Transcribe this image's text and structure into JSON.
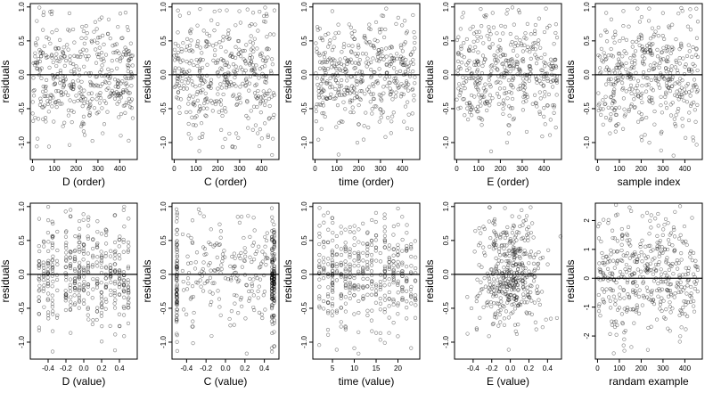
{
  "chart_data": [
    {
      "type": "scatter",
      "row": 0,
      "col": 0,
      "xlabel": "D (order)",
      "ylabel": "residuals",
      "xlim": [
        -10,
        480
      ],
      "ylim": [
        -1.25,
        1.05
      ],
      "xticks": [
        0,
        100,
        200,
        300,
        400
      ],
      "yticks": [
        -1.0,
        -0.5,
        0.0,
        0.5,
        1.0
      ],
      "ytick_labels": [
        "-1.0",
        "-0.5",
        "0.0",
        "0.5",
        "1.0"
      ],
      "ref_y": 0,
      "grid": false,
      "n_points": 420,
      "gen": {
        "kind": "order",
        "xmin": 0,
        "xmax": 460,
        "sd": 0.42,
        "seed": 11
      }
    },
    {
      "type": "scatter",
      "row": 0,
      "col": 1,
      "xlabel": "C (order)",
      "ylabel": "residuals",
      "xlim": [
        -10,
        480
      ],
      "ylim": [
        -1.25,
        1.05
      ],
      "xticks": [
        0,
        100,
        200,
        300,
        400
      ],
      "yticks": [
        -1.0,
        -0.5,
        0.0,
        0.5,
        1.0
      ],
      "ytick_labels": [
        "-1.0",
        "-0.5",
        "0.0",
        "0.5",
        "1.0"
      ],
      "ref_y": 0,
      "grid": false,
      "n_points": 420,
      "gen": {
        "kind": "order",
        "xmin": 0,
        "xmax": 460,
        "sd": 0.42,
        "seed": 23
      }
    },
    {
      "type": "scatter",
      "row": 0,
      "col": 2,
      "xlabel": "time (order)",
      "ylabel": "residuals",
      "xlim": [
        -10,
        480
      ],
      "ylim": [
        -1.25,
        1.05
      ],
      "xticks": [
        0,
        100,
        200,
        300,
        400
      ],
      "yticks": [
        -1.0,
        -0.5,
        0.0,
        0.5,
        1.0
      ],
      "ytick_labels": [
        "-1.0",
        "-0.5",
        "0.0",
        "0.5",
        "1.0"
      ],
      "ref_y": 0,
      "grid": false,
      "n_points": 420,
      "gen": {
        "kind": "order",
        "xmin": 0,
        "xmax": 460,
        "sd": 0.42,
        "seed": 37
      }
    },
    {
      "type": "scatter",
      "row": 0,
      "col": 3,
      "xlabel": "E (order)",
      "ylabel": "residuals",
      "xlim": [
        -10,
        480
      ],
      "ylim": [
        -1.25,
        1.05
      ],
      "xticks": [
        0,
        100,
        200,
        300,
        400
      ],
      "yticks": [
        -1.0,
        -0.5,
        0.0,
        0.5,
        1.0
      ],
      "ytick_labels": [
        "-1.0",
        "-0.5",
        "0.0",
        "0.5",
        "1.0"
      ],
      "ref_y": 0,
      "grid": false,
      "n_points": 420,
      "gen": {
        "kind": "order",
        "xmin": 0,
        "xmax": 460,
        "sd": 0.42,
        "seed": 41
      }
    },
    {
      "type": "scatter",
      "row": 0,
      "col": 4,
      "xlabel": "sample index",
      "ylabel": "residuals",
      "xlim": [
        -10,
        480
      ],
      "ylim": [
        -1.25,
        1.05
      ],
      "xticks": [
        0,
        100,
        200,
        300,
        400
      ],
      "yticks": [
        -1.0,
        -0.5,
        0.0,
        0.5,
        1.0
      ],
      "ytick_labels": [
        "-1.0",
        "-0.5",
        "0.0",
        "0.5",
        "1.0"
      ],
      "ref_y": 0,
      "grid": false,
      "n_points": 420,
      "gen": {
        "kind": "order",
        "xmin": 0,
        "xmax": 460,
        "sd": 0.42,
        "seed": 53
      }
    },
    {
      "type": "scatter",
      "row": 1,
      "col": 0,
      "xlabel": "D (value)",
      "ylabel": "residuals",
      "xlim": [
        -0.6,
        0.6
      ],
      "ylim": [
        -1.25,
        1.05
      ],
      "xticks": [
        -0.4,
        -0.2,
        0.0,
        0.2,
        0.4
      ],
      "xtick_labels": [
        "-0.4",
        "-0.2",
        "0.0",
        "0.2",
        "0.4"
      ],
      "yticks": [
        -1.0,
        -0.5,
        0.0,
        0.5,
        1.0
      ],
      "ytick_labels": [
        "-1.0",
        "-0.5",
        "0.0",
        "0.5",
        "1.0"
      ],
      "ref_y": 0,
      "grid": false,
      "n_points": 420,
      "gen": {
        "kind": "discrete",
        "levels": [
          -0.5,
          -0.45,
          -0.4,
          -0.35,
          -0.3,
          -0.2,
          -0.15,
          -0.1,
          -0.05,
          0.0,
          0.05,
          0.1,
          0.15,
          0.2,
          0.25,
          0.3,
          0.35,
          0.4,
          0.45,
          0.5
        ],
        "jitter": 0.004,
        "sd": 0.42,
        "seed": 61
      }
    },
    {
      "type": "scatter",
      "row": 1,
      "col": 1,
      "xlabel": "C (value)",
      "ylabel": "residuals",
      "xlim": [
        -0.55,
        0.55
      ],
      "ylim": [
        -1.25,
        1.05
      ],
      "xticks": [
        -0.4,
        -0.2,
        0.0,
        0.2,
        0.4
      ],
      "xtick_labels": [
        "-0.4",
        "-0.2",
        "0.0",
        "0.2",
        "0.4"
      ],
      "yticks": [
        -1.0,
        -0.5,
        0.0,
        0.5,
        1.0
      ],
      "ytick_labels": [
        "-1.0",
        "-0.5",
        "0.0",
        "0.5",
        "1.0"
      ],
      "ref_y": 0,
      "grid": false,
      "n_points": 420,
      "gen": {
        "kind": "mixed",
        "levels": [
          -0.5,
          0.48,
          0.5
        ],
        "frac_levels": 0.55,
        "xmin": -0.45,
        "xmax": 0.45,
        "jitter": 0.004,
        "sd": 0.42,
        "seed": 71
      }
    },
    {
      "type": "scatter",
      "row": 1,
      "col": 2,
      "xlabel": "time (value)",
      "ylabel": "residuals",
      "xlim": [
        0.5,
        25
      ],
      "ylim": [
        -1.25,
        1.05
      ],
      "xticks": [
        5,
        10,
        15,
        20
      ],
      "yticks": [
        -1.0,
        -0.5,
        0.0,
        0.5,
        1.0
      ],
      "ytick_labels": [
        "-1.0",
        "-0.5",
        "0.0",
        "0.5",
        "1.0"
      ],
      "ref_y": 0,
      "grid": false,
      "n_points": 420,
      "gen": {
        "kind": "discrete",
        "levels": [
          2,
          3,
          4,
          5,
          6,
          7,
          8,
          9,
          10,
          11,
          12,
          13,
          14,
          15,
          16,
          17,
          18,
          19,
          20,
          21,
          22,
          23,
          24
        ],
        "jitter": 0.05,
        "sd": 0.42,
        "seed": 83
      }
    },
    {
      "type": "scatter",
      "row": 1,
      "col": 3,
      "xlabel": "E (value)",
      "ylabel": "residuals",
      "xlim": [
        -0.6,
        0.55
      ],
      "ylim": [
        -1.25,
        1.05
      ],
      "xticks": [
        -0.4,
        -0.2,
        0.0,
        0.2,
        0.4
      ],
      "xtick_labels": [
        "-0.4",
        "-0.2",
        "0.0",
        "0.2",
        "0.4"
      ],
      "yticks": [
        -1.0,
        -0.5,
        0.0,
        0.5,
        1.0
      ],
      "ytick_labels": [
        "-1.0",
        "-0.5",
        "0.0",
        "0.5",
        "1.0"
      ],
      "ref_y": 0,
      "grid": false,
      "n_points": 420,
      "gen": {
        "kind": "cluster",
        "center": 0.0,
        "spread": 0.18,
        "sd": 0.42,
        "seed": 97
      }
    },
    {
      "type": "scatter",
      "row": 1,
      "col": 4,
      "xlabel": "randam example",
      "ylabel": "residuals",
      "xlim": [
        -10,
        480
      ],
      "ylim": [
        -2.8,
        2.6
      ],
      "xticks": [
        0,
        100,
        200,
        300,
        400
      ],
      "yticks": [
        -2,
        -1,
        0,
        1,
        2
      ],
      "ytick_labels": [
        "-2",
        "-1",
        "0",
        "1",
        "2"
      ],
      "ref_y": 0,
      "grid": false,
      "n_points": 420,
      "gen": {
        "kind": "order",
        "xmin": 0,
        "xmax": 460,
        "sd": 1.0,
        "seed": 109
      }
    }
  ]
}
